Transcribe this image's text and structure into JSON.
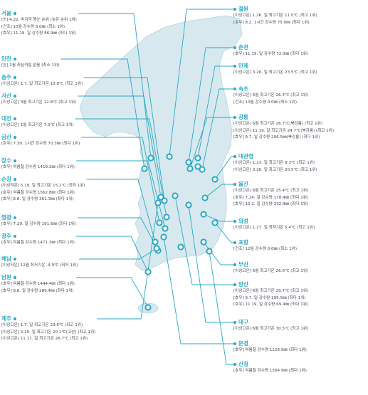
{
  "stations": [
    {
      "name": "서울",
      "records": [
        "[눈] 4.22. 마지막 봄눈 순위 (늦은 순위 1위)",
        "[건조] 10월 강수량 0.0㎜ (최소 1위)",
        "[호우] 11.19. 일 강수량 86.9㎜ (최다 1위)"
      ]
    },
    {
      "name": "인천",
      "records": [
        "[눈] 1월 최심적설 없음 (최소 1위)"
      ]
    },
    {
      "name": "충주",
      "records": [
        "[이상고온] 1.7. 일 최고기온 13.8℃ (최고 1위)"
      ]
    },
    {
      "name": "서산",
      "records": [
        "[이상고온] 3월 최고기온 12.8℃ (최고 1위)"
      ]
    },
    {
      "name": "대전",
      "records": [
        "[이상고온] 1월 최고기온 7.3℃ (최고 1위)"
      ]
    },
    {
      "name": "금산",
      "records": [
        "[호우] 7.30. 1시간 강수량 70.3㎜ (최다 1위)"
      ]
    },
    {
      "name": "장수",
      "records": [
        "[호우] 여름철 강수량 1418.2㎜ (최다 1위)"
      ]
    },
    {
      "name": "순창",
      "records": [
        "[이상저온] 5.19. 일 최고기온 15.2℃ (최저 1위)",
        "[호우] 여름철 강수량 1562.8㎜ (최다 1위)",
        "[호우] 8.8. 일 강수량 361.3㎜ (최다 1위)"
      ]
    },
    {
      "name": "영광",
      "records": [
        "[호우] 7.29. 일 강수량 191.6㎜ (최다 1위)"
      ]
    },
    {
      "name": "광주",
      "records": [
        "[호우] 여름철 강수량 1471.3㎜ (최다 1위)"
      ]
    },
    {
      "name": "해남",
      "records": [
        "[이상저온] 12월 최저기온 -4.9℃ (최저 1위)"
      ]
    },
    {
      "name": "남원",
      "records": [
        "[호우] 여름철 강수량 1444.4㎜ (최다 1위)",
        "[호우] 8.8. 일 강수량 289.4㎜ (최다 1위)"
      ]
    },
    {
      "name": "제주",
      "records": [
        "[이상고온] 1.7. 일 최고기온 23.6℃ (최고 1위)",
        "[이상고온] 2.15. 일 최고기온 20.1℃(고산) (최고 1위)",
        "[이상고온] 11.17. 일 최고기온 26.7℃ (최고 1위)"
      ]
    },
    {
      "name": "철원",
      "records": [
        "[이상고온] 1.26. 일 최고기온 11.0℃ (최고 1위)",
        "[호우] 8.2. 1시간 강수량 75.0㎜ (최다 1위)"
      ]
    },
    {
      "name": "춘천",
      "records": [
        "[호우] 11.19. 일 강수량 72.0㎜ (최다 1위)"
      ]
    },
    {
      "name": "인제",
      "records": [
        "[이상고온] 3.26. 일 최고기온 23.5℃ (최고 1위)"
      ]
    },
    {
      "name": "속초",
      "records": [
        "[이상고온] 6월 최고기온 26.4℃ (최고 1위)",
        "[건조] 10월 강수량 0.0㎜ (최소 1위)"
      ]
    },
    {
      "name": "강릉",
      "records": [
        "[이상고온] 6월 최고기온 26.7℃(북강릉) (최고 1위)",
        "[이상고온] 11.19. 일 최고기온 24.7℃(북강릉) (최고 1위)",
        "[호우] 9.7. 일 강수량 206.5㎜(북강릉) (최다 1위)"
      ]
    },
    {
      "name": "대관령",
      "records": [
        "[이상고온] 1.23. 일 최고기온 9.3℃ (최고 1위)",
        "[이상고온] 3.26. 일 최고기온 20.5℃ (최고 1위)"
      ]
    },
    {
      "name": "울진",
      "records": [
        "[이상고온] 6월 최고기온 25.4℃ (최고 1위)",
        "[호우] 7.24. 일 강수량 178.4㎜ (최다 1위)",
        "[호우] 10.2. 일 강수량 332.9㎜ (최다 1위)"
      ]
    },
    {
      "name": "의성",
      "records": [
        "[이상고온] 1.27. 일 최저기온 5.4℃ (최고 1위)"
      ]
    },
    {
      "name": "포항",
      "records": [
        "[건조] 12월 강수량 0.0㎜ (최소 1위)"
      ]
    },
    {
      "name": "부산",
      "records": [
        "[이상고온] 6월 최고기온 26.6℃ (최고 1위)"
      ]
    },
    {
      "name": "양산",
      "records": [
        "[이상고온] 6월 최고기온 29.7℃ (최고 1위)",
        "[호우] 9.7. 일 강수량 195.5㎜ (최다 1위)",
        "[호우] 11.19. 일 강수량 69.4㎜ (최다 1위)"
      ]
    },
    {
      "name": "대구",
      "records": [
        "[이상고온] 6월 최고기온 30.5℃ (최고 1위)"
      ]
    },
    {
      "name": "문경",
      "records": [
        "[호우] 여름철 강수량 1226.0㎜ (최다 1위)"
      ]
    },
    {
      "name": "산청",
      "records": [
        "[호우] 여름철 강수량 1564.9㎜ (최다 1위)"
      ]
    }
  ]
}
